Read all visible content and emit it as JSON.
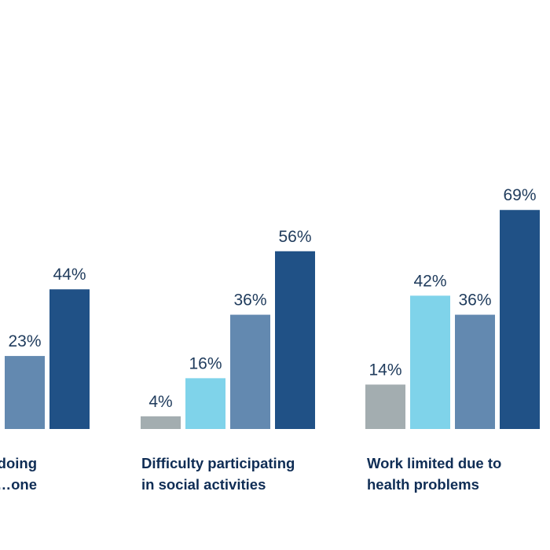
{
  "chart_data": {
    "type": "bar",
    "categories": [
      {
        "lines": [
          "…doing",
          "…one"
        ]
      },
      {
        "lines": [
          "Difficulty participating",
          "in social activities"
        ]
      },
      {
        "lines": [
          "Work limited due to",
          "health problems"
        ]
      }
    ],
    "series": [
      {
        "color": "#a3adb0",
        "values": [
          null,
          4,
          14
        ]
      },
      {
        "color": "#7fd3ea",
        "values": [
          null,
          16,
          42
        ]
      },
      {
        "color": "#6389b0",
        "values": [
          23,
          36,
          36
        ]
      },
      {
        "color": "#205186",
        "values": [
          44,
          56,
          69
        ]
      }
    ],
    "value_labels": [
      [
        null,
        "4%",
        "14%"
      ],
      [
        null,
        "16%",
        "42%"
      ],
      [
        "23%",
        "36%",
        "36%"
      ],
      [
        "44%",
        "56%",
        "69%"
      ]
    ],
    "ylim": [
      0,
      100
    ],
    "grid": false,
    "legend": "none",
    "title": "",
    "xlabel": "",
    "ylabel": ""
  }
}
